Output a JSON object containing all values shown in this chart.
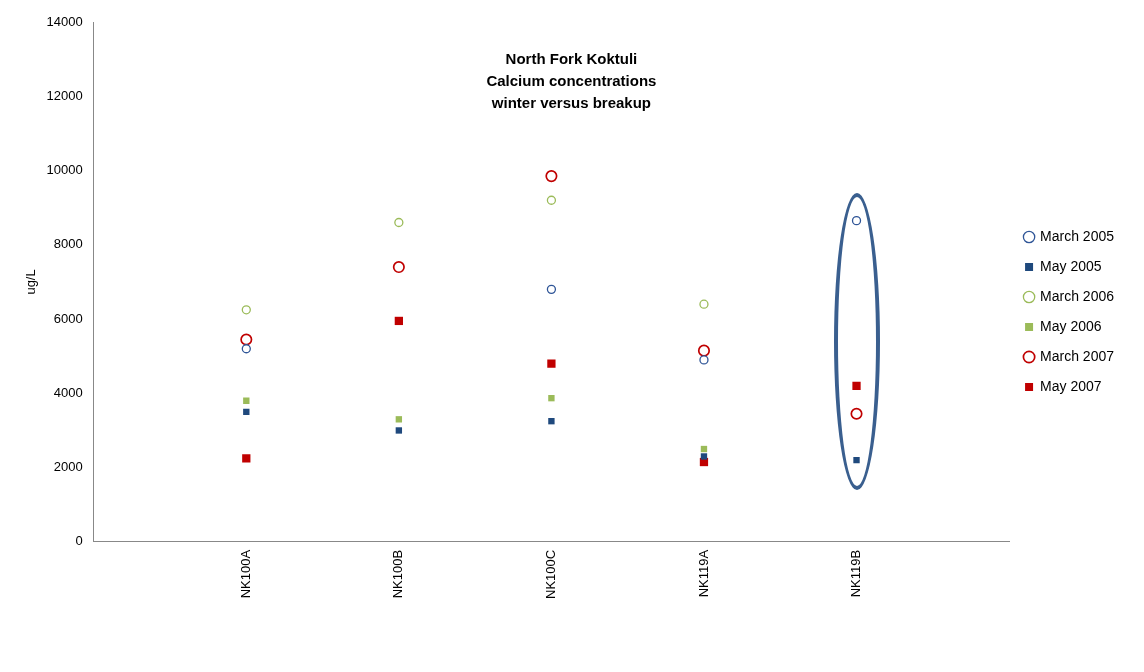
{
  "chart_data": {
    "type": "scatter",
    "title": "North Fork Koktuli\nCalcium concentrations\nwinter versus breakup",
    "ylabel": "ug/L",
    "categories": [
      "NK100A",
      "NK100B",
      "NK100C",
      "NK119A",
      "NK119B"
    ],
    "ylim": [
      0,
      14000
    ],
    "yticks": [
      0,
      2000,
      4000,
      6000,
      8000,
      10000,
      12000,
      14000
    ],
    "grid": false,
    "legend": "right",
    "series": [
      {
        "name": "March 2005",
        "color": "#2f5597",
        "marker": "circle",
        "values": [
          5200,
          null,
          6800,
          4900,
          8650
        ]
      },
      {
        "name": "May 2005",
        "color": "#1f497d",
        "marker": "square",
        "values": [
          3500,
          3000,
          3250,
          2300,
          2200
        ]
      },
      {
        "name": "March 2006",
        "color": "#9bbb59",
        "marker": "circle",
        "values": [
          6250,
          8600,
          9200,
          6400,
          null
        ]
      },
      {
        "name": "May 2006",
        "color": "#9bbb59",
        "marker": "square",
        "values": [
          3800,
          3300,
          3870,
          2500,
          null
        ]
      },
      {
        "name": "March 2007",
        "color": "#c00000",
        "marker": "circle",
        "values": [
          5450,
          7400,
          9850,
          5150,
          3450
        ]
      },
      {
        "name": "May 2007",
        "color": "#c00000",
        "marker": "square",
        "values": [
          2250,
          5950,
          4800,
          2150,
          4200
        ]
      }
    ]
  }
}
